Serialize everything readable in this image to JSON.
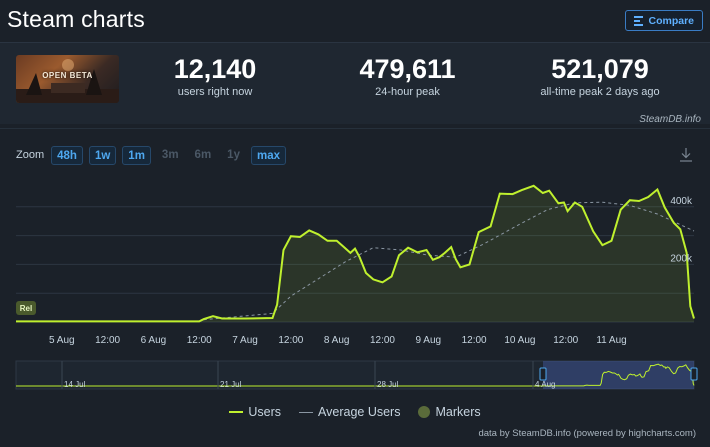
{
  "header": {
    "title": "Steam charts",
    "compare_label": "Compare"
  },
  "stats": {
    "game_banner_text": "OPEN BETA",
    "players_now_value": "12,140",
    "players_now_label": "users right now",
    "peak_24h_value": "479,611",
    "peak_24h_label": "24-hour peak",
    "all_time_value": "521,079",
    "all_time_label": "all-time peak 2 days ago",
    "credit": "SteamDB.info"
  },
  "zoom": {
    "label": "Zoom",
    "buttons": [
      {
        "label": "48h",
        "enabled": true
      },
      {
        "label": "1w",
        "enabled": true
      },
      {
        "label": "1m",
        "enabled": true
      },
      {
        "label": "3m",
        "enabled": false
      },
      {
        "label": "6m",
        "enabled": false
      },
      {
        "label": "1y",
        "enabled": false
      },
      {
        "label": "max",
        "enabled": true
      }
    ]
  },
  "chart_data": {
    "type": "line",
    "x_ticks": [
      "5 Aug",
      "12:00",
      "6 Aug",
      "12:00",
      "7 Aug",
      "12:00",
      "8 Aug",
      "12:00",
      "9 Aug",
      "12:00",
      "10 Aug",
      "12:00",
      "11 Aug"
    ],
    "y_ticks": [
      {
        "value": 200000,
        "label": "200k"
      },
      {
        "value": 400000,
        "label": "400k"
      }
    ],
    "ylim": [
      0,
      500000
    ],
    "xlim_days": [
      4.5,
      11.9
    ],
    "grid": true,
    "marker_label": "Rel",
    "series": [
      {
        "name": "Users",
        "color": "#bff02e",
        "points": [
          [
            4.5,
            2000
          ],
          [
            5.0,
            2000
          ],
          [
            5.5,
            2000
          ],
          [
            6.0,
            2000
          ],
          [
            6.5,
            2000
          ],
          [
            6.55,
            10000
          ],
          [
            6.65,
            20000
          ],
          [
            6.75,
            12000
          ],
          [
            7.0,
            12000
          ],
          [
            7.3,
            14000
          ],
          [
            7.35,
            60000
          ],
          [
            7.42,
            250000
          ],
          [
            7.5,
            298000
          ],
          [
            7.6,
            295000
          ],
          [
            7.7,
            318000
          ],
          [
            7.8,
            304000
          ],
          [
            7.9,
            282000
          ],
          [
            8.0,
            282000
          ],
          [
            8.08,
            260000
          ],
          [
            8.15,
            240000
          ],
          [
            8.2,
            255000
          ],
          [
            8.25,
            225000
          ],
          [
            8.32,
            170000
          ],
          [
            8.4,
            148000
          ],
          [
            8.5,
            138000
          ],
          [
            8.6,
            158000
          ],
          [
            8.68,
            232000
          ],
          [
            8.78,
            258000
          ],
          [
            8.88,
            242000
          ],
          [
            8.98,
            250000
          ],
          [
            9.05,
            216000
          ],
          [
            9.12,
            225000
          ],
          [
            9.18,
            240000
          ],
          [
            9.25,
            260000
          ],
          [
            9.3,
            218000
          ],
          [
            9.35,
            190000
          ],
          [
            9.45,
            200000
          ],
          [
            9.55,
            312000
          ],
          [
            9.68,
            332000
          ],
          [
            9.78,
            446000
          ],
          [
            9.92,
            444000
          ],
          [
            10.02,
            458000
          ],
          [
            10.15,
            473000
          ],
          [
            10.25,
            448000
          ],
          [
            10.32,
            456000
          ],
          [
            10.42,
            412000
          ],
          [
            10.48,
            415000
          ],
          [
            10.52,
            385000
          ],
          [
            10.6,
            415000
          ],
          [
            10.68,
            400000
          ],
          [
            10.8,
            315000
          ],
          [
            10.9,
            267000
          ],
          [
            11.0,
            282000
          ],
          [
            11.1,
            390000
          ],
          [
            11.2,
            423000
          ],
          [
            11.3,
            420000
          ],
          [
            11.4,
            434000
          ],
          [
            11.5,
            460000
          ],
          [
            11.58,
            398000
          ],
          [
            11.68,
            344000
          ],
          [
            11.75,
            322000
          ],
          [
            11.82,
            240000
          ],
          [
            11.86,
            55000
          ],
          [
            11.9,
            12000
          ]
        ]
      },
      {
        "name": "Average Users",
        "color": "#8a96a2",
        "points": [
          [
            6.55,
            8000
          ],
          [
            7.3,
            30000
          ],
          [
            7.5,
            90000
          ],
          [
            7.8,
            150000
          ],
          [
            8.1,
            210000
          ],
          [
            8.4,
            258000
          ],
          [
            8.7,
            250000
          ],
          [
            9.0,
            232000
          ],
          [
            9.3,
            225000
          ],
          [
            9.6,
            270000
          ],
          [
            10.0,
            340000
          ],
          [
            10.3,
            390000
          ],
          [
            10.6,
            414000
          ],
          [
            10.9,
            416000
          ],
          [
            11.2,
            405000
          ],
          [
            11.5,
            375000
          ],
          [
            11.9,
            316000
          ]
        ]
      }
    ],
    "navigator_ticks": [
      "14 Jul",
      "21 Jul",
      "28 Jul",
      "4 Aug"
    ],
    "legend": [
      "Users",
      "Average Users",
      "Markers"
    ]
  },
  "footer": {
    "credit": "data by SteamDB.info (powered by highcharts.com)"
  },
  "colors": {
    "accent": "#4ea8f0",
    "line": "#bff02e",
    "background": "#1b2129"
  }
}
